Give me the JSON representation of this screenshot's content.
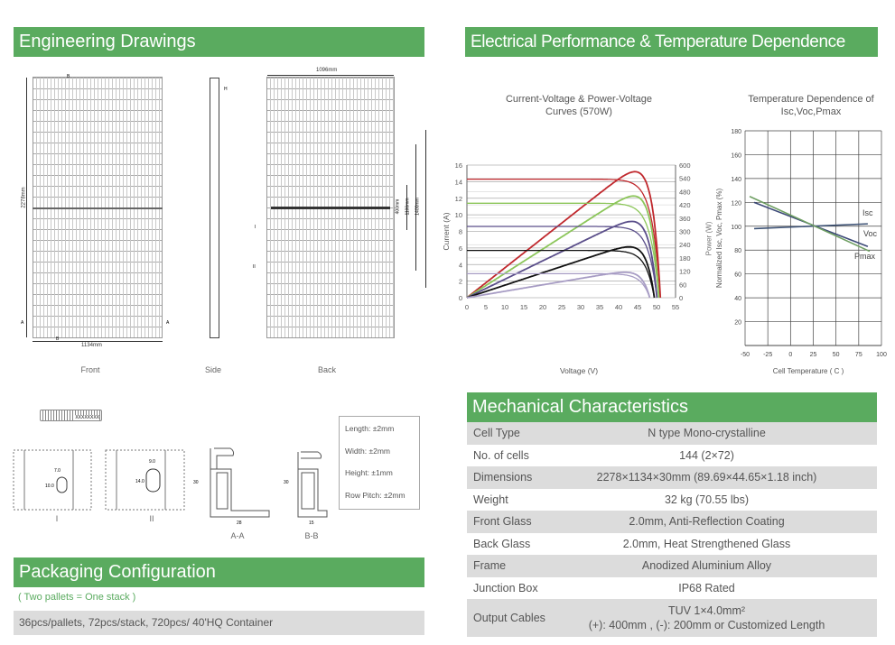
{
  "sections": {
    "engineering": "Engineering Drawings",
    "electrical": "Electrical Performance & Temperature Dependence",
    "mechanical": "Mechanical Characteristics",
    "packaging": "Packaging Configuration"
  },
  "drawings": {
    "front": "Front",
    "side": "Side",
    "back": "Back",
    "dim_height": "2278mm",
    "dim_width": "1134mm",
    "dim_back_width": "1096mm",
    "dim_400": "400mm",
    "dim_1100": "1100mm",
    "dim_1400": "1400mm",
    "mark_a": "A",
    "mark_b": "B",
    "mark_h": "H",
    "mark_i": "I",
    "mark_ii": "II",
    "barcode": "XXXXXXXX",
    "detail_i": "I",
    "detail_ii": "II",
    "section_aa": "A-A",
    "section_bb": "B-B",
    "d_7": "7.0",
    "d_10": "10.0",
    "d_9": "9.0",
    "d_14": "14.0",
    "d_30a": "30",
    "d_30b": "30",
    "d_28": "28",
    "d_15": "15"
  },
  "tolerances": [
    "Length: ±2mm",
    "Width: ±2mm",
    "Height: ±1mm",
    "Row Pitch: ±2mm"
  ],
  "chart_data": [
    {
      "type": "line",
      "title": "Current-Voltage & Power-Voltage",
      "title2": "Curves (570W)",
      "xlabel": "Voltage (V)",
      "ylabel": "Current (A)",
      "y2label": "Power (W)",
      "xlim": [
        0,
        55
      ],
      "ylim": [
        0,
        16
      ],
      "y2lim": [
        0,
        600
      ],
      "xticks": [
        0,
        5,
        10,
        15,
        20,
        25,
        30,
        35,
        40,
        45,
        50,
        55
      ],
      "yticks": [
        0,
        2,
        4,
        6,
        8,
        10,
        12,
        14,
        16
      ],
      "y2ticks": [
        0,
        60,
        120,
        180,
        240,
        300,
        360,
        420,
        480,
        540,
        600
      ],
      "series": [
        {
          "isc": 14.3,
          "voc": 51.0,
          "pmax": 570,
          "color": "#c0282d"
        },
        {
          "isc": 11.4,
          "voc": 50.6,
          "pmax": 460,
          "color": "#8cc65a"
        },
        {
          "isc": 8.6,
          "voc": 50.1,
          "pmax": 345,
          "color": "#5a4e8a"
        },
        {
          "isc": 5.7,
          "voc": 49.4,
          "pmax": 230,
          "color": "#111111"
        },
        {
          "isc": 2.9,
          "voc": 48.2,
          "pmax": 115,
          "color": "#a79cc4"
        }
      ]
    },
    {
      "type": "line",
      "title": "Temperature Dependence of",
      "title2": "Isc,Voc,Pmax",
      "xlabel": "Cell Temperature ( C )",
      "ylabel": "Normalized Isc, Voc, Pmax (%)",
      "xlim": [
        -50,
        100
      ],
      "ylim": [
        0,
        180
      ],
      "xticks": [
        -50,
        -25,
        0,
        25,
        50,
        75,
        100
      ],
      "yticks": [
        20,
        40,
        60,
        80,
        100,
        120,
        140,
        160,
        180
      ],
      "series": [
        {
          "name": "Isc",
          "x": [
            -40,
            85
          ],
          "y": [
            98,
            102
          ],
          "color": "#3d5275"
        },
        {
          "name": "Voc",
          "x": [
            -40,
            85
          ],
          "y": [
            120,
            83
          ],
          "color": "#3d4a78"
        },
        {
          "name": "Pmax",
          "x": [
            -45,
            87
          ],
          "y": [
            125,
            79
          ],
          "color": "#6f9f63"
        }
      ]
    }
  ],
  "mechanical": [
    {
      "k": "Cell  Type",
      "v": "N type Mono-crystalline"
    },
    {
      "k": "No. of cells",
      "v": "144 (2×72)"
    },
    {
      "k": "Dimensions",
      "v": "2278×1134×30mm (89.69×44.65×1.18 inch)"
    },
    {
      "k": "Weight",
      "v": "32 kg (70.55 lbs)"
    },
    {
      "k": "Front Glass",
      "v": "2.0mm, Anti-Reflection Coating"
    },
    {
      "k": "Back Glass",
      "v": "2.0mm, Heat Strengthened Glass"
    },
    {
      "k": "Frame",
      "v": "Anodized Aluminium Alloy"
    },
    {
      "k": "Junction Box",
      "v": "IP68 Rated"
    },
    {
      "k": "Output Cables",
      "v": "TUV  1×4.0mm²",
      "v2": "(+): 400mm , (-): 200mm or Customized Length"
    }
  ],
  "packaging": {
    "note": "( Two pallets = One stack )",
    "detail": "36pcs/pallets, 72pcs/stack, 720pcs/ 40'HQ Container"
  }
}
